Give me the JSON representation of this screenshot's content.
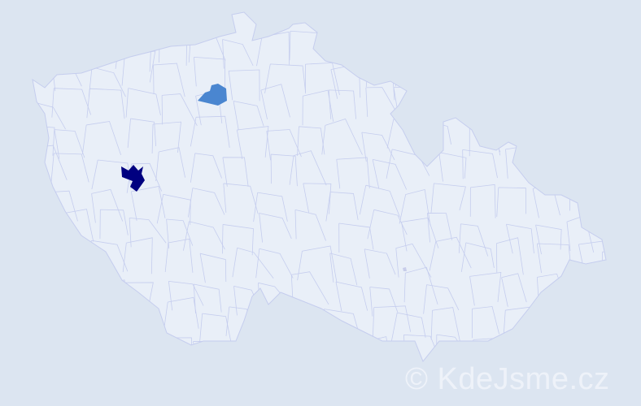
{
  "map": {
    "background_color": "#dce5f1",
    "country_fill": "#e9eff8",
    "border_color": "#c5cdee",
    "highlighted_regions": [
      {
        "name": "",
        "color": "#000080",
        "level": "high"
      },
      {
        "name": "",
        "color": "#4a86d0",
        "level": "medium"
      },
      {
        "name": "",
        "color": "#c8cdea",
        "level": "low"
      }
    ]
  },
  "watermark": {
    "text": "© KdeJsme.cz"
  }
}
